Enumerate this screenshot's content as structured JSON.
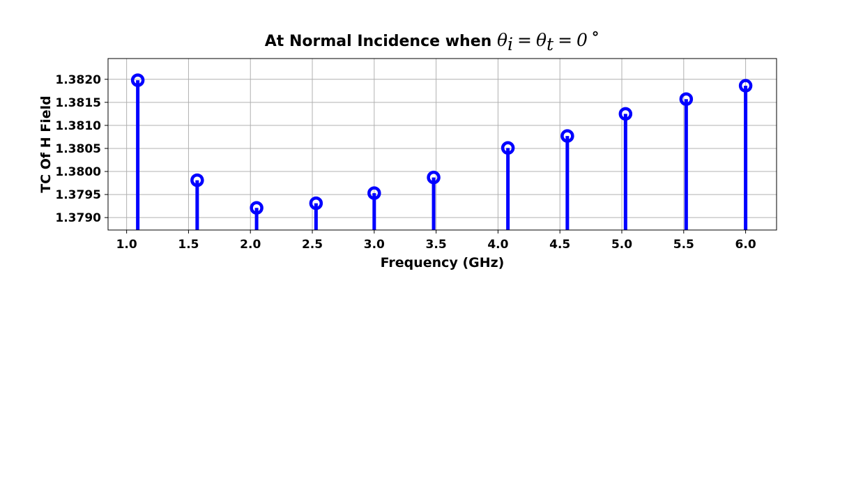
{
  "chart_data": {
    "type": "stem",
    "title": "At Normal Incidence when ",
    "title_math": {
      "theta": "θ",
      "sub_i": "i",
      "eq": "=",
      "sub_t": "t",
      "zero": "0",
      "degree": "∘"
    },
    "xlabel": "Frequency (GHz)",
    "ylabel": "TC Of H Field",
    "xlim": [
      0.85,
      6.25
    ],
    "ylim": [
      1.37873,
      1.38245
    ],
    "xticks": [
      1.0,
      1.5,
      2.0,
      2.5,
      3.0,
      3.5,
      4.0,
      4.5,
      5.0,
      5.5,
      6.0
    ],
    "xtick_labels": [
      "1.0",
      "1.5",
      "2.0",
      "2.5",
      "3.0",
      "3.5",
      "4.0",
      "4.5",
      "5.0",
      "5.5",
      "6.0"
    ],
    "yticks": [
      1.379,
      1.3795,
      1.38,
      1.3805,
      1.381,
      1.3815,
      1.382
    ],
    "ytick_labels": [
      "1.3790",
      "1.3795",
      "1.3800",
      "1.3805",
      "1.3810",
      "1.3815",
      "1.3820"
    ],
    "grid": true,
    "color": "#0000ff",
    "series": [
      {
        "x": [
          1.09,
          1.57,
          2.05,
          2.53,
          3.0,
          3.48,
          4.08,
          4.56,
          5.03,
          5.52,
          6.0
        ],
        "y": [
          1.38198,
          1.37981,
          1.37921,
          1.37931,
          1.37953,
          1.37987,
          1.38051,
          1.38077,
          1.38125,
          1.38157,
          1.38186
        ]
      }
    ]
  }
}
